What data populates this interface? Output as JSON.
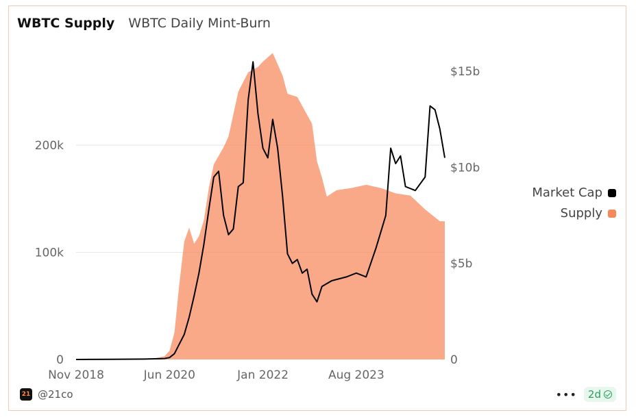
{
  "tabs": [
    {
      "label": "WBTC Supply",
      "active": true
    },
    {
      "label": "WBTC Daily Mint-Burn",
      "active": false
    }
  ],
  "legend": [
    {
      "label": "Market Cap",
      "color": "#000000"
    },
    {
      "label": "Supply",
      "color": "#f7885a"
    }
  ],
  "footer": {
    "logo_text": "21",
    "handle": "@21co",
    "more": "•••",
    "freshness": "2d"
  },
  "chart_data": {
    "type": "area",
    "x_start": "2018-11",
    "x_end": "2025-02",
    "x_ticks": [
      "Nov 2018",
      "Jun 2020",
      "Jan 2022",
      "Aug 2023"
    ],
    "left_axis": {
      "ticks": [
        {
          "value": 0,
          "label": "0"
        },
        {
          "value": 100000,
          "label": "100k"
        },
        {
          "value": 200000,
          "label": "200k"
        }
      ],
      "ylim": [
        0,
        285000
      ]
    },
    "right_axis": {
      "ticks": [
        {
          "value": 0,
          "label": "0"
        },
        {
          "value": 5,
          "label": "$5b"
        },
        {
          "value": 10,
          "label": "$10b"
        },
        {
          "value": 15,
          "label": "$15b"
        }
      ],
      "ylim": [
        0,
        15.9
      ]
    },
    "grid": true,
    "legend_position": "right",
    "series": [
      {
        "name": "Supply",
        "axis": "left",
        "kind": "area",
        "color": "#f7885a",
        "points": [
          [
            "2018-11",
            0
          ],
          [
            "2019-01",
            100
          ],
          [
            "2019-06",
            300
          ],
          [
            "2019-12",
            500
          ],
          [
            "2020-03",
            1000
          ],
          [
            "2020-05",
            3000
          ],
          [
            "2020-06",
            8000
          ],
          [
            "2020-07",
            25000
          ],
          [
            "2020-08",
            70000
          ],
          [
            "2020-09",
            110000
          ],
          [
            "2020-10",
            123000
          ],
          [
            "2020-11",
            108000
          ],
          [
            "2020-12",
            115000
          ],
          [
            "2021-01",
            130000
          ],
          [
            "2021-02",
            160000
          ],
          [
            "2021-03",
            182000
          ],
          [
            "2021-04",
            190000
          ],
          [
            "2021-05",
            198000
          ],
          [
            "2021-06",
            208000
          ],
          [
            "2021-08",
            250000
          ],
          [
            "2021-10",
            268000
          ],
          [
            "2021-12",
            273000
          ],
          [
            "2022-01",
            278000
          ],
          [
            "2022-03",
            286000
          ],
          [
            "2022-05",
            265000
          ],
          [
            "2022-06",
            248000
          ],
          [
            "2022-08",
            245000
          ],
          [
            "2022-11",
            220000
          ],
          [
            "2022-12",
            185000
          ],
          [
            "2023-01",
            170000
          ],
          [
            "2023-02",
            152000
          ],
          [
            "2023-04",
            158000
          ],
          [
            "2023-07",
            160000
          ],
          [
            "2023-10",
            163000
          ],
          [
            "2024-01",
            160000
          ],
          [
            "2024-04",
            155000
          ],
          [
            "2024-07",
            153000
          ],
          [
            "2024-10",
            140000
          ],
          [
            "2025-01",
            129000
          ],
          [
            "2025-02",
            129000
          ]
        ]
      },
      {
        "name": "Market Cap",
        "axis": "right",
        "kind": "line",
        "color": "#000000",
        "points": [
          [
            "2018-11",
            0
          ],
          [
            "2019-06",
            0.01
          ],
          [
            "2020-01",
            0.02
          ],
          [
            "2020-05",
            0.05
          ],
          [
            "2020-06",
            0.1
          ],
          [
            "2020-07",
            0.3
          ],
          [
            "2020-08",
            0.8
          ],
          [
            "2020-09",
            1.3
          ],
          [
            "2020-10",
            2.2
          ],
          [
            "2020-11",
            3.3
          ],
          [
            "2020-12",
            4.5
          ],
          [
            "2021-01",
            6.0
          ],
          [
            "2021-02",
            7.8
          ],
          [
            "2021-03",
            9.5
          ],
          [
            "2021-04",
            9.8
          ],
          [
            "2021-05",
            7.5
          ],
          [
            "2021-06",
            6.5
          ],
          [
            "2021-07",
            6.8
          ],
          [
            "2021-08",
            9.0
          ],
          [
            "2021-09",
            9.2
          ],
          [
            "2021-10",
            13.5
          ],
          [
            "2021-11",
            15.5
          ],
          [
            "2021-12",
            12.8
          ],
          [
            "2022-01",
            11.0
          ],
          [
            "2022-02",
            10.5
          ],
          [
            "2022-03",
            12.5
          ],
          [
            "2022-04",
            11.0
          ],
          [
            "2022-05",
            8.5
          ],
          [
            "2022-06",
            5.5
          ],
          [
            "2022-07",
            5.0
          ],
          [
            "2022-08",
            5.2
          ],
          [
            "2022-09",
            4.5
          ],
          [
            "2022-10",
            4.7
          ],
          [
            "2022-11",
            3.4
          ],
          [
            "2022-12",
            3.0
          ],
          [
            "2023-01",
            3.8
          ],
          [
            "2023-03",
            4.1
          ],
          [
            "2023-06",
            4.3
          ],
          [
            "2023-08",
            4.5
          ],
          [
            "2023-10",
            4.3
          ],
          [
            "2023-12",
            5.8
          ],
          [
            "2024-02",
            7.5
          ],
          [
            "2024-03",
            11.0
          ],
          [
            "2024-04",
            10.2
          ],
          [
            "2024-05",
            10.6
          ],
          [
            "2024-06",
            9.0
          ],
          [
            "2024-08",
            8.8
          ],
          [
            "2024-10",
            9.5
          ],
          [
            "2024-11",
            13.2
          ],
          [
            "2024-12",
            13.0
          ],
          [
            "2025-01",
            12.0
          ],
          [
            "2025-02",
            10.5
          ]
        ]
      }
    ]
  }
}
